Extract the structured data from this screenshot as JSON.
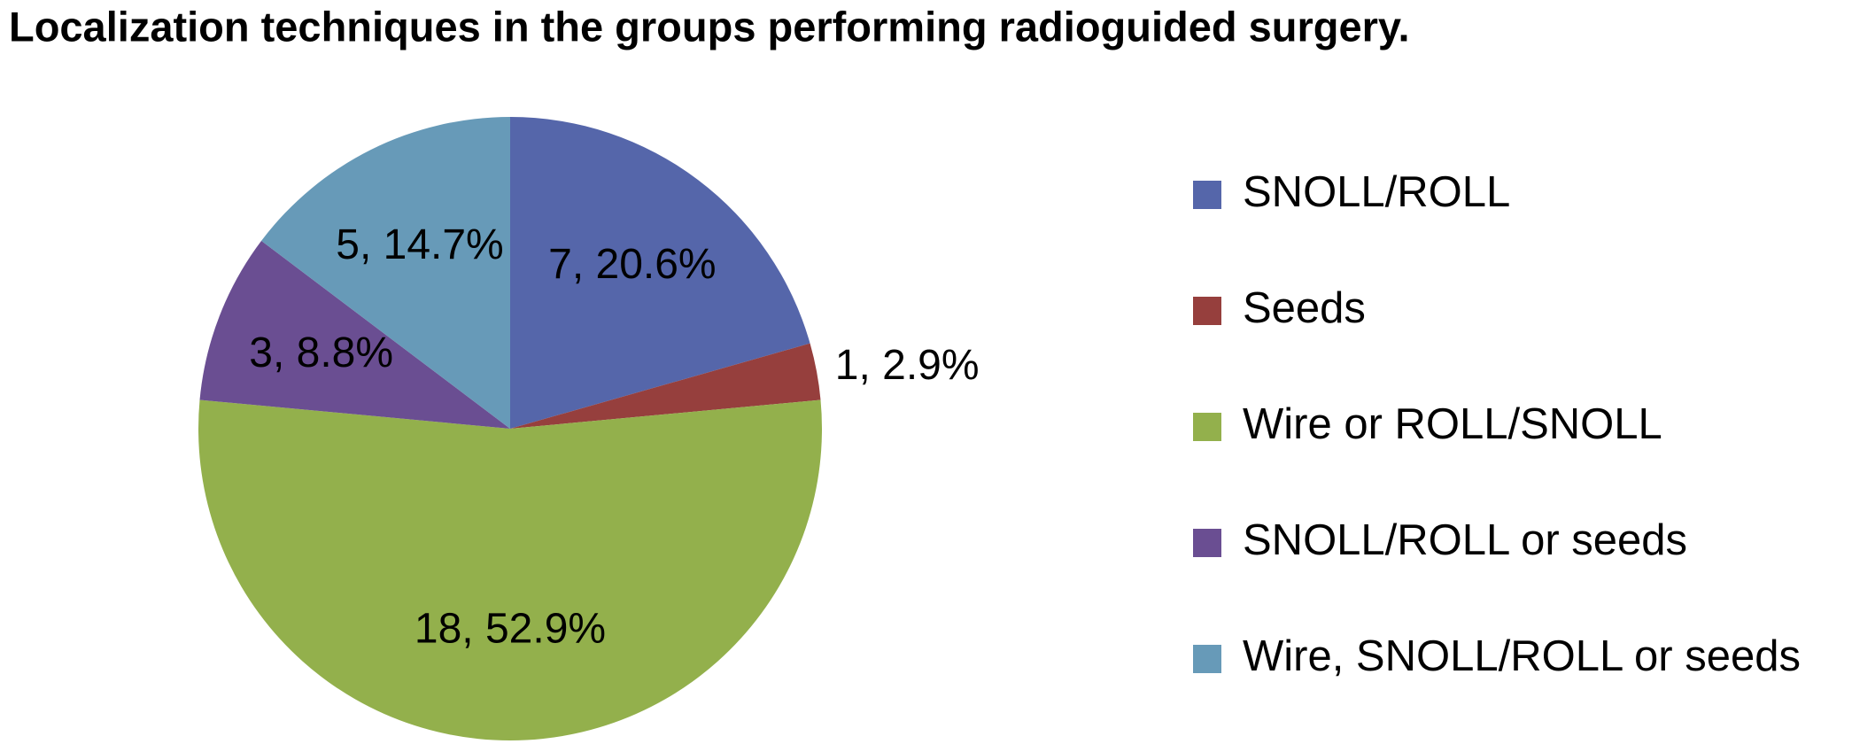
{
  "chart_data": {
    "type": "pie",
    "title": "Localization techniques in the groups performing radioguided surgery.",
    "categories": [
      "SNOLL/ROLL",
      "Seeds",
      "Wire or ROLL/SNOLL",
      "SNOLL/ROLL or seeds",
      "Wire, SNOLL/ROLL or seeds"
    ],
    "values": [
      7,
      1,
      18,
      3,
      5
    ],
    "value_labels": [
      "7, 20.6%",
      "1, 2.9%",
      "18, 52.9%",
      "3, 8.8%",
      "5, 14.7%"
    ],
    "colors": [
      "#5566aa",
      "#963f3d",
      "#93b04c",
      "#6a4e92",
      "#679ab8"
    ],
    "legend": "right"
  }
}
